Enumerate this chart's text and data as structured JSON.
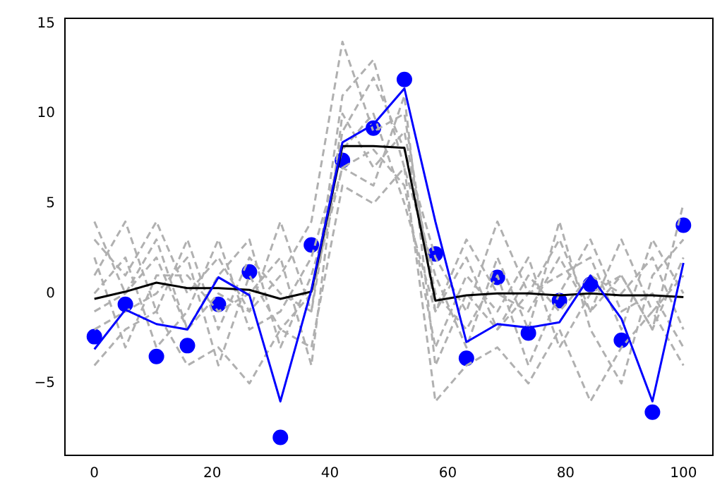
{
  "chart_data": {
    "type": "line",
    "x": [
      0,
      5.26,
      10.53,
      15.79,
      21.05,
      26.32,
      31.58,
      36.84,
      42.11,
      47.37,
      52.63,
      57.89,
      63.16,
      68.42,
      73.68,
      78.95,
      84.21,
      89.47,
      94.74,
      100
    ],
    "xlim": [
      -5,
      105
    ],
    "ylim": [
      -9,
      15.3
    ],
    "xticks": [
      0,
      20,
      40,
      60,
      80,
      100
    ],
    "yticks": [
      -5,
      0,
      5,
      10,
      15
    ],
    "grid": false,
    "legend": false,
    "series": [
      {
        "type": "scatter",
        "color": "#0000ff",
        "marker": "circle",
        "values": [
          -2.4,
          -0.6,
          -3.5,
          -2.9,
          -0.6,
          1.2,
          -8.0,
          2.7,
          7.4,
          9.2,
          11.9,
          2.2,
          -3.6,
          0.9,
          -2.2,
          -0.4,
          0.5,
          -2.6,
          -6.6,
          3.8
        ]
      },
      {
        "color": "#b0b0b0",
        "line_style": "dashed",
        "marker": "none",
        "values": [
          3,
          1,
          4,
          0,
          2,
          -1,
          1,
          4,
          14,
          9,
          10,
          -1,
          2,
          -2,
          0,
          3,
          -1,
          1,
          -2,
          5
        ]
      },
      {
        "color": "#b0b0b0",
        "line_style": "dashed",
        "marker": "none",
        "values": [
          -4,
          -2,
          -1,
          -4,
          -3,
          -5,
          -2,
          -3,
          6,
          5,
          7,
          -6,
          -4,
          -3,
          -5,
          -2,
          -6,
          -3,
          -1,
          -4
        ]
      },
      {
        "color": "#b0b0b0",
        "line_style": "dashed",
        "marker": "none",
        "values": [
          1,
          4,
          -1,
          3,
          -2,
          2,
          0,
          -1,
          9,
          12,
          8,
          2,
          -1,
          4,
          0,
          1,
          2,
          -2,
          3,
          0
        ]
      },
      {
        "color": "#b0b0b0",
        "line_style": "dashed",
        "marker": "none",
        "values": [
          -1,
          0,
          2,
          -2,
          1,
          3,
          -3,
          1,
          7,
          8,
          6,
          -3,
          1,
          -1,
          2,
          -3,
          0,
          1,
          -2,
          2
        ]
      },
      {
        "color": "#b0b0b0",
        "line_style": "dashed",
        "marker": "none",
        "values": [
          2,
          -3,
          1,
          1,
          -1,
          0,
          2,
          -4,
          10,
          7,
          9,
          0,
          -2,
          1,
          -4,
          0,
          3,
          -1,
          0,
          -3
        ]
      },
      {
        "color": "#b0b0b0",
        "line_style": "dashed",
        "marker": "none",
        "values": [
          0,
          2,
          -3,
          -1,
          3,
          -2,
          -1,
          2,
          8,
          10,
          5,
          -1,
          3,
          0,
          -1,
          2,
          -1,
          3,
          -1,
          1
        ]
      },
      {
        "color": "#b0b0b0",
        "line_style": "dashed",
        "marker": "none",
        "values": [
          -2,
          -1,
          0,
          2,
          -4,
          1,
          -2,
          0,
          7,
          6,
          11,
          -4,
          0,
          -2,
          1,
          -1,
          1,
          0,
          2,
          -2
        ]
      },
      {
        "color": "#b0b0b0",
        "line_style": "dashed",
        "marker": "none",
        "values": [
          4,
          0,
          3,
          -2,
          0,
          -1,
          4,
          -1,
          11,
          13,
          7,
          1,
          -3,
          2,
          -2,
          4,
          -2,
          -5,
          1,
          3
        ]
      },
      {
        "color": "#000000",
        "line_style": "solid",
        "marker": "none",
        "values": [
          -0.3,
          0.1,
          0.6,
          0.3,
          0.3,
          0.2,
          -0.3,
          0.1,
          8.2,
          8.2,
          8.1,
          -0.4,
          -0.1,
          0.0,
          0.0,
          -0.1,
          0.0,
          -0.1,
          -0.1,
          -0.2
        ]
      },
      {
        "color": "#0000ff",
        "line_style": "solid",
        "marker": "none",
        "values": [
          -3.1,
          -0.9,
          -1.7,
          -2.0,
          0.9,
          -0.1,
          -6.0,
          0.2,
          8.4,
          9.4,
          11.4,
          4.0,
          -2.7,
          -1.7,
          -1.9,
          -1.6,
          1.0,
          -1.4,
          -6.0,
          1.7
        ]
      }
    ]
  }
}
